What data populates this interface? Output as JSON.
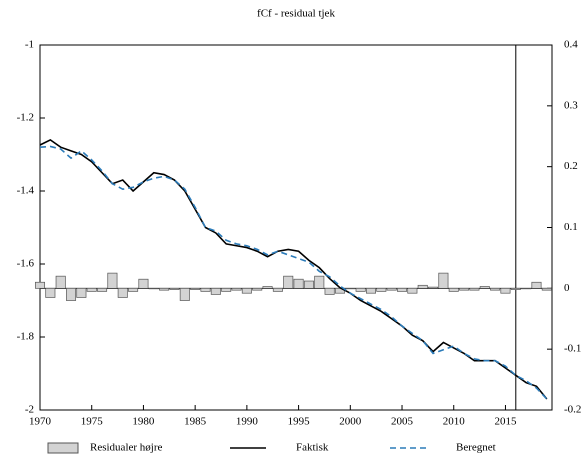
{
  "chart_data": {
    "type": "bar-line",
    "title": "fCf - residual tjek",
    "x": [
      1970,
      1971,
      1972,
      1973,
      1974,
      1975,
      1976,
      1977,
      1978,
      1979,
      1980,
      1981,
      1982,
      1983,
      1984,
      1985,
      1986,
      1987,
      1988,
      1989,
      1990,
      1991,
      1992,
      1993,
      1994,
      1995,
      1996,
      1997,
      1998,
      1999,
      2000,
      2001,
      2002,
      2003,
      2004,
      2005,
      2006,
      2007,
      2008,
      2009,
      2010,
      2011,
      2012,
      2013,
      2014,
      2015,
      2016,
      2017,
      2018,
      2019
    ],
    "xlim": [
      1970,
      2019.5
    ],
    "xticks": [
      1970,
      1975,
      1980,
      1985,
      1990,
      1995,
      2000,
      2005,
      2010,
      2015
    ],
    "ylim": [
      -2,
      -1
    ],
    "yticks": [
      -1,
      -1.2,
      -1.4,
      -1.6,
      -1.8,
      -2
    ],
    "y2lim": [
      -0.2,
      0.4
    ],
    "y2ticks": [
      0.4,
      0.3,
      0.2,
      0.1,
      0,
      -0.1,
      -0.2
    ],
    "vline": 2016,
    "series": [
      {
        "name": "Residualer højre",
        "kind": "bar",
        "axis": "y2",
        "color": "#d3d3d3",
        "values": [
          0.01,
          -0.015,
          0.02,
          -0.02,
          -0.015,
          -0.005,
          -0.005,
          0.025,
          -0.015,
          -0.005,
          0.015,
          0,
          -0.003,
          -0.002,
          -0.02,
          -0.002,
          -0.005,
          -0.01,
          -0.005,
          -0.003,
          -0.008,
          -0.003,
          0.003,
          -0.005,
          0.02,
          0.015,
          0.012,
          0.02,
          -0.01,
          -0.008,
          0,
          -0.005,
          -0.008,
          -0.005,
          -0.003,
          -0.005,
          -0.008,
          0.005,
          0.002,
          0.025,
          -0.005,
          -0.003,
          -0.003,
          0.003,
          -0.003,
          -0.008,
          -0.002,
          0,
          0.01,
          -0.003
        ]
      },
      {
        "name": "Faktisk",
        "kind": "line",
        "color": "#000000",
        "values": [
          -1.274,
          -1.26,
          -1.28,
          -1.29,
          -1.3,
          -1.32,
          -1.35,
          -1.38,
          -1.37,
          -1.4,
          -1.375,
          -1.35,
          -1.355,
          -1.37,
          -1.4,
          -1.45,
          -1.5,
          -1.515,
          -1.545,
          -1.55,
          -1.555,
          -1.565,
          -1.58,
          -1.565,
          -1.56,
          -1.565,
          -1.59,
          -1.61,
          -1.64,
          -1.665,
          -1.68,
          -1.7,
          -1.715,
          -1.73,
          -1.75,
          -1.77,
          -1.795,
          -1.81,
          -1.84,
          -1.815,
          -1.83,
          -1.845,
          -1.865,
          -1.865,
          -1.865,
          -1.885,
          -1.905,
          -1.925,
          -1.935,
          -1.97
        ]
      },
      {
        "name": "Beregnet",
        "kind": "line",
        "dash": true,
        "color": "#2b7bb9",
        "values": [
          -1.28,
          -1.278,
          -1.285,
          -1.31,
          -1.29,
          -1.315,
          -1.345,
          -1.38,
          -1.395,
          -1.39,
          -1.375,
          -1.365,
          -1.36,
          -1.37,
          -1.395,
          -1.445,
          -1.5,
          -1.51,
          -1.535,
          -1.545,
          -1.55,
          -1.56,
          -1.575,
          -1.565,
          -1.575,
          -1.585,
          -1.595,
          -1.62,
          -1.635,
          -1.66,
          -1.68,
          -1.695,
          -1.71,
          -1.725,
          -1.745,
          -1.77,
          -1.79,
          -1.81,
          -1.845,
          -1.835,
          -1.825,
          -1.845,
          -1.86,
          -1.865,
          -1.865,
          -1.88,
          -1.905,
          -1.92,
          -1.94,
          -1.97
        ]
      }
    ]
  }
}
